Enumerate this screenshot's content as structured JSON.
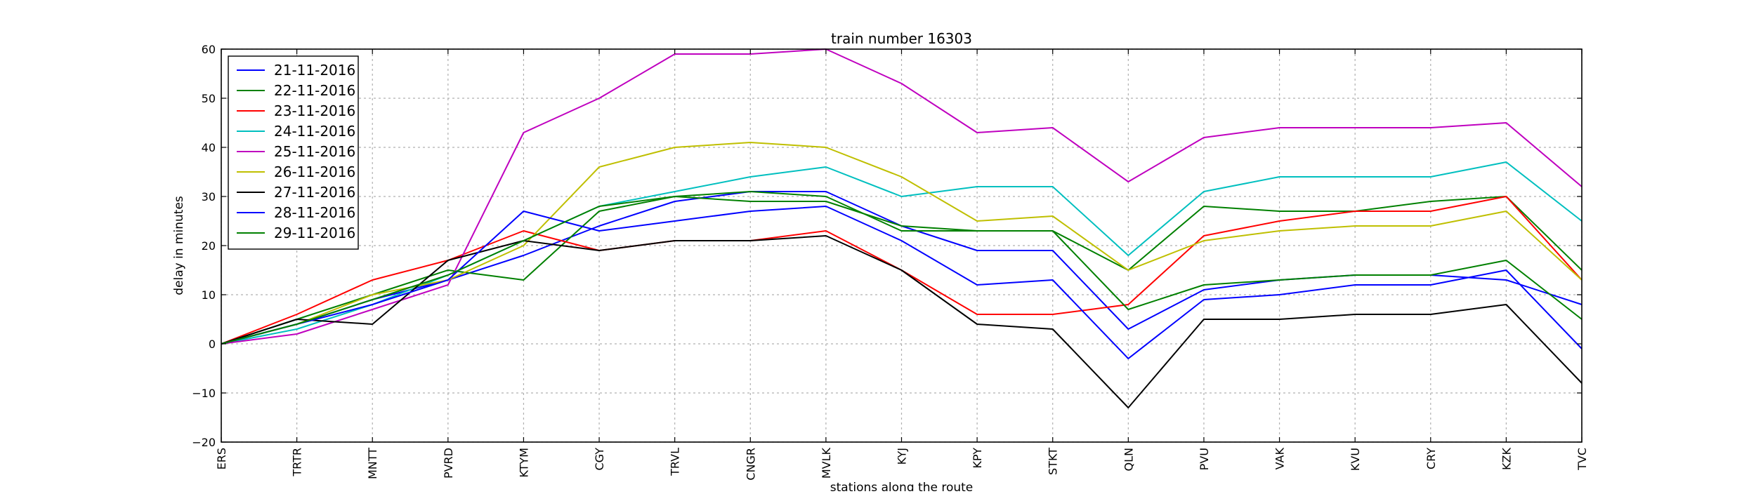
{
  "chart_data": {
    "type": "line",
    "title": "train number 16303",
    "xlabel": "stations along the route",
    "ylabel": "delay in minutes",
    "ylim": [
      -20,
      60
    ],
    "yticks": [
      -20,
      -10,
      0,
      10,
      20,
      30,
      40,
      50,
      60
    ],
    "grid": true,
    "legend_position": "top-left",
    "categories": [
      "ERS",
      "TRTR",
      "MNTT",
      "PVRD",
      "KTYM",
      "CGY",
      "TRVL",
      "CNGR",
      "MVLK",
      "KYJ",
      "KPY",
      "STKT",
      "QLN",
      "PVU",
      "VAK",
      "KVU",
      "CRY",
      "KZK",
      "TVC"
    ],
    "series": [
      {
        "name": "21-11-2016",
        "color": "#0000ff",
        "values": [
          0,
          4,
          9,
          13,
          18,
          24,
          29,
          31,
          31,
          24,
          19,
          19,
          3,
          11,
          13,
          14,
          14,
          13,
          8
        ]
      },
      {
        "name": "22-11-2016",
        "color": "#008000",
        "values": [
          0,
          5,
          10,
          15,
          13,
          27,
          30,
          29,
          29,
          24,
          23,
          23,
          15,
          28,
          27,
          27,
          29,
          30,
          15
        ]
      },
      {
        "name": "23-11-2016",
        "color": "#ff0000",
        "values": [
          0,
          6,
          13,
          17,
          23,
          19,
          21,
          21,
          23,
          15,
          6,
          6,
          8,
          22,
          25,
          27,
          27,
          30,
          13
        ]
      },
      {
        "name": "24-11-2016",
        "color": "#00bfbf",
        "values": [
          0,
          3,
          8,
          14,
          21,
          28,
          31,
          34,
          36,
          30,
          32,
          32,
          18,
          31,
          34,
          34,
          34,
          37,
          25
        ]
      },
      {
        "name": "25-11-2016",
        "color": "#bf00bf",
        "values": [
          0,
          2,
          7,
          12,
          43,
          50,
          59,
          59,
          60,
          53,
          43,
          44,
          33,
          42,
          44,
          44,
          44,
          45,
          32
        ]
      },
      {
        "name": "26-11-2016",
        "color": "#bfbf00",
        "values": [
          0,
          4,
          10,
          13,
          20,
          36,
          40,
          41,
          40,
          34,
          25,
          26,
          15,
          21,
          23,
          24,
          24,
          27,
          13
        ]
      },
      {
        "name": "27-11-2016",
        "color": "#000000",
        "values": [
          0,
          5,
          4,
          17,
          21,
          19,
          21,
          21,
          22,
          15,
          4,
          3,
          -13,
          5,
          5,
          6,
          6,
          8,
          -8
        ]
      },
      {
        "name": "28-11-2016",
        "color": "#0000ff",
        "values": [
          0,
          4,
          8,
          13,
          27,
          23,
          25,
          27,
          28,
          21,
          12,
          13,
          -3,
          9,
          10,
          12,
          12,
          15,
          -1
        ]
      },
      {
        "name": "29-11-2016",
        "color": "#008000",
        "values": [
          0,
          4,
          9,
          14,
          21,
          28,
          30,
          31,
          30,
          23,
          23,
          23,
          7,
          12,
          13,
          14,
          14,
          17,
          5
        ]
      }
    ]
  }
}
